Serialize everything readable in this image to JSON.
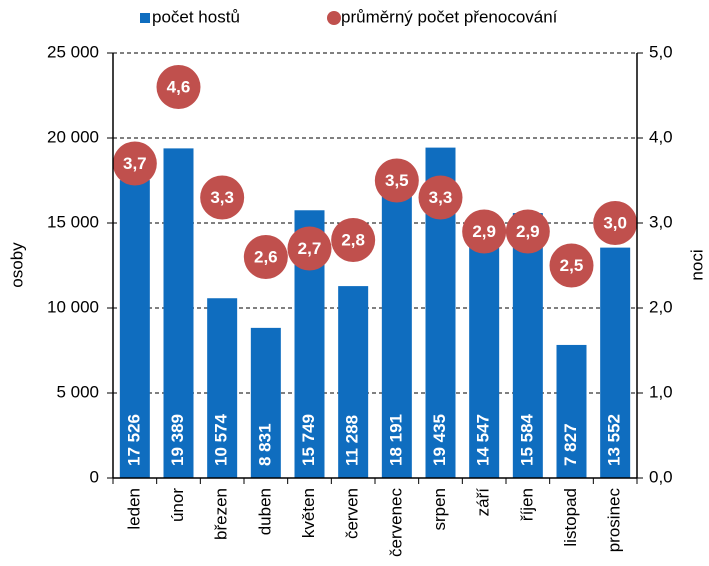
{
  "chart_data": {
    "type": "bar",
    "categories": [
      "leden",
      "únor",
      "březen",
      "duben",
      "květen",
      "červen",
      "červenec",
      "srpen",
      "září",
      "říjen",
      "listopad",
      "prosinec"
    ],
    "series": [
      {
        "name": "počet hostů",
        "type": "bar",
        "color": "#0f6dbf",
        "values": [
          17526,
          19389,
          10574,
          8831,
          15749,
          11288,
          18191,
          19435,
          14547,
          15584,
          7827,
          13552
        ],
        "value_labels": [
          "17 526",
          "19 389",
          "10 574",
          "8 831",
          "15 749",
          "11 288",
          "18 191",
          "19 435",
          "14 547",
          "15 584",
          "7 827",
          "13 552"
        ]
      },
      {
        "name": "průměrný počet přenocování",
        "type": "scatter",
        "axis": "y2",
        "color": "#c0504d",
        "values": [
          3.7,
          4.6,
          3.3,
          2.6,
          2.7,
          2.8,
          3.5,
          3.3,
          2.9,
          2.9,
          2.5,
          3.0
        ],
        "value_labels": [
          "3,7",
          "4,6",
          "3,3",
          "2,6",
          "2,7",
          "2,8",
          "3,5",
          "3,3",
          "2,9",
          "2,9",
          "2,5",
          "3,0"
        ]
      }
    ],
    "ylabel": "osoby",
    "y2label": "noci",
    "ylim": [
      0,
      25000
    ],
    "yticks": [
      {
        "value": 0,
        "label": "0"
      },
      {
        "value": 5000,
        "label": "5 000"
      },
      {
        "value": 10000,
        "label": "10 000"
      },
      {
        "value": 15000,
        "label": "15 000"
      },
      {
        "value": 20000,
        "label": "20 000"
      },
      {
        "value": 25000,
        "label": "25 000"
      }
    ],
    "y2lim": [
      0,
      5
    ],
    "y2ticks": [
      {
        "value": 0,
        "label": "0,0"
      },
      {
        "value": 1,
        "label": "1,0"
      },
      {
        "value": 2,
        "label": "2,0"
      },
      {
        "value": 3,
        "label": "3,0"
      },
      {
        "value": 4,
        "label": "4,0"
      },
      {
        "value": 5,
        "label": "5,0"
      }
    ],
    "grid": true,
    "legend": "top"
  }
}
